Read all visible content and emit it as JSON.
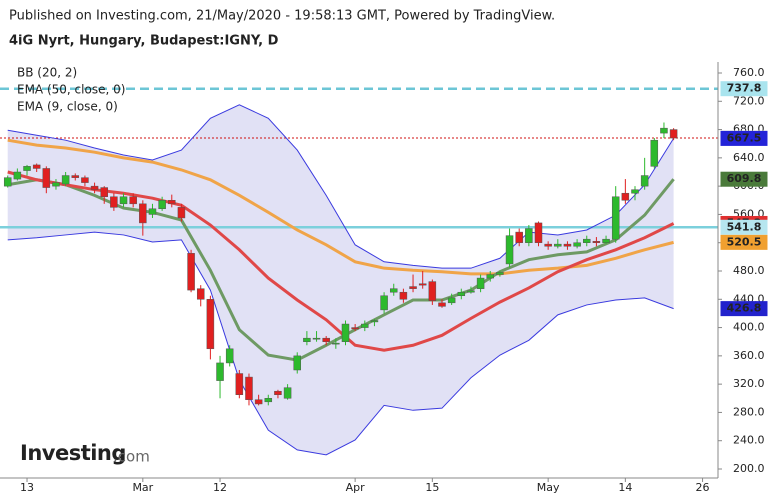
{
  "chart_data": {
    "type": "candlestick",
    "title": "Published on Investing.com, 21/May/2020 - 19:58:13 GMT, Powered by TradingView.",
    "subtitle": "4iG Nyrt, Hungary, Budapest:IGNY, D",
    "logo": {
      "name": "Investing",
      "suffix": ".com"
    },
    "up_color": "#2db92d",
    "down_color": "#e02020",
    "candles": {
      "open": [
        600,
        610,
        622,
        630,
        625,
        600,
        603,
        615,
        612,
        600,
        598,
        585,
        575,
        585,
        575,
        560,
        568,
        580,
        570,
        505,
        455,
        440,
        325,
        350,
        335,
        330,
        298,
        295,
        310,
        300,
        340,
        380,
        385,
        385,
        378,
        380,
        400,
        400,
        408,
        425,
        450,
        450,
        458,
        462,
        465,
        435,
        435,
        445,
        450,
        455,
        470,
        475,
        490,
        535,
        520,
        548,
        518,
        515,
        518,
        515,
        520,
        522,
        520,
        525,
        590,
        590,
        600,
        628,
        675,
        680
      ],
      "high": [
        615,
        625,
        630,
        632,
        628,
        610,
        620,
        618,
        615,
        605,
        600,
        590,
        590,
        590,
        580,
        575,
        585,
        588,
        575,
        510,
        460,
        445,
        360,
        375,
        340,
        335,
        305,
        305,
        312,
        320,
        365,
        395,
        395,
        388,
        385,
        410,
        405,
        410,
        412,
        450,
        462,
        455,
        475,
        480,
        468,
        440,
        448,
        455,
        458,
        475,
        480,
        480,
        540,
        540,
        545,
        550,
        522,
        525,
        522,
        525,
        530,
        528,
        530,
        600,
        610,
        600,
        640,
        668,
        690,
        682
      ],
      "low": [
        598,
        608,
        615,
        620,
        590,
        595,
        600,
        608,
        600,
        590,
        575,
        565,
        570,
        570,
        530,
        555,
        565,
        570,
        550,
        450,
        430,
        355,
        300,
        345,
        300,
        290,
        290,
        290,
        300,
        298,
        335,
        375,
        380,
        375,
        370,
        375,
        395,
        395,
        402,
        420,
        445,
        435,
        450,
        455,
        432,
        428,
        432,
        440,
        448,
        450,
        465,
        472,
        485,
        515,
        515,
        515,
        510,
        512,
        510,
        512,
        515,
        515,
        518,
        520,
        575,
        580,
        595,
        625,
        668,
        665
      ],
      "close": [
        612,
        620,
        628,
        625,
        598,
        605,
        615,
        612,
        605,
        595,
        585,
        570,
        585,
        575,
        548,
        568,
        580,
        575,
        555,
        453,
        440,
        370,
        350,
        370,
        305,
        298,
        292,
        300,
        305,
        315,
        360,
        385,
        385,
        380,
        378,
        405,
        398,
        405,
        410,
        445,
        455,
        440,
        455,
        460,
        438,
        430,
        442,
        450,
        452,
        470,
        475,
        478,
        530,
        520,
        540,
        520,
        515,
        518,
        515,
        520,
        525,
        520,
        525,
        585,
        580,
        595,
        615,
        665,
        682,
        668
      ]
    },
    "indicator_x": [
      0,
      3,
      6,
      9,
      12,
      15,
      18,
      21,
      24,
      27,
      30,
      33,
      36,
      39,
      42,
      45,
      48,
      51,
      54,
      57,
      60,
      63,
      66,
      69
    ],
    "bollinger": {
      "name": "BB (20, 2)",
      "band_color": "#c9c9ec",
      "edge_color": "#3a3adf",
      "basis_color": "#e04848",
      "upper": [
        679,
        672,
        665,
        654,
        644,
        637,
        651,
        696,
        715,
        696,
        651,
        587,
        517,
        493,
        488,
        484,
        484,
        498,
        535,
        531,
        538,
        559,
        602,
        667.5
      ],
      "basis": [
        620,
        609,
        602,
        595,
        590,
        583,
        573,
        545,
        510,
        470,
        439,
        411,
        375,
        368,
        375,
        389,
        413,
        436,
        456,
        479,
        496,
        510,
        527,
        547.2
      ],
      "lower": [
        524,
        527,
        531,
        535,
        531,
        521,
        524,
        453,
        326,
        255,
        227,
        220,
        241,
        290,
        283,
        286,
        329,
        361,
        382,
        418,
        432,
        439,
        442,
        426.8
      ]
    },
    "ema_lines": [
      {
        "name": "EMA (50, close, 0)",
        "color": "#f0a448",
        "values": [
          665,
          658,
          654,
          648,
          640,
          634,
          623,
          609,
          587,
          563,
          538,
          517,
          493,
          484,
          481,
          479,
          476,
          476,
          481,
          484,
          488,
          498,
          510,
          520.5
        ]
      },
      {
        "name": "EMA (9, close, 0)",
        "color": "#6e9a64",
        "values": [
          602,
          609,
          602,
          587,
          569,
          563,
          552,
          481,
          397,
          361,
          354,
          375,
          397,
          418,
          439,
          439,
          453,
          479,
          496,
          503,
          507,
          524,
          559,
          609.8
        ]
      }
    ],
    "price_labels": [
      {
        "value": 737.8,
        "label": "737.8",
        "color": "#a9e4ee",
        "text_color": "#1a3a44",
        "line": "dashed",
        "line_color": "#6cc6d6"
      },
      {
        "value": 668,
        "label": "668.0",
        "color": "#ffffff",
        "text_color": "#d01010",
        "line": "dotted",
        "line_color": "#d01010"
      },
      {
        "value": 667.5,
        "label": "667.5",
        "color": "#2323d8",
        "text_color": "#ffffff"
      },
      {
        "value": 609.8,
        "label": "609.8",
        "color": "#4a7a3a",
        "text_color": "#ffffff"
      },
      {
        "value": 547.2,
        "label": "547.2",
        "color": "#e03030",
        "text_color": "#ffffff"
      },
      {
        "value": 541.8,
        "label": "541.8",
        "color": "#b6e6ef",
        "text_color": "#1a3a44",
        "line": "solid",
        "line_color": "#7cd0dc"
      },
      {
        "value": 520.5,
        "label": "520.5",
        "color": "#f0a030",
        "text_color": "#ffffff"
      },
      {
        "value": 426.8,
        "label": "426.8",
        "color": "#2323cc",
        "text_color": "#ffffff"
      }
    ],
    "ylim": [
      200,
      760
    ],
    "yticks": [
      {
        "value": 760,
        "label": "760.0"
      },
      {
        "value": 720,
        "label": "720.0"
      },
      {
        "value": 680,
        "label": "680.0"
      },
      {
        "value": 640,
        "label": "640.0"
      },
      {
        "value": 600,
        "label": "600.0"
      },
      {
        "value": 560,
        "label": "560.0"
      },
      {
        "value": 520,
        "label": "520.0"
      },
      {
        "value": 480,
        "label": "480.0"
      },
      {
        "value": 440,
        "label": "440.0"
      },
      {
        "value": 400,
        "label": "400.0"
      },
      {
        "value": 360,
        "label": "360.0"
      },
      {
        "value": 320,
        "label": "320.0"
      },
      {
        "value": 280,
        "label": "280.0"
      },
      {
        "value": 240,
        "label": "240.0"
      },
      {
        "value": 200,
        "label": "200.0"
      }
    ],
    "xlim": [
      -0.8,
      73.6
    ],
    "xticks": [
      {
        "value": 2,
        "label": "13"
      },
      {
        "value": 14,
        "label": "Mar"
      },
      {
        "value": 22,
        "label": "12"
      },
      {
        "value": 36,
        "label": "Apr"
      },
      {
        "value": 44,
        "label": "15"
      },
      {
        "value": 56,
        "label": "May"
      },
      {
        "value": 64,
        "label": "14"
      },
      {
        "value": 72,
        "label": "26"
      }
    ]
  }
}
